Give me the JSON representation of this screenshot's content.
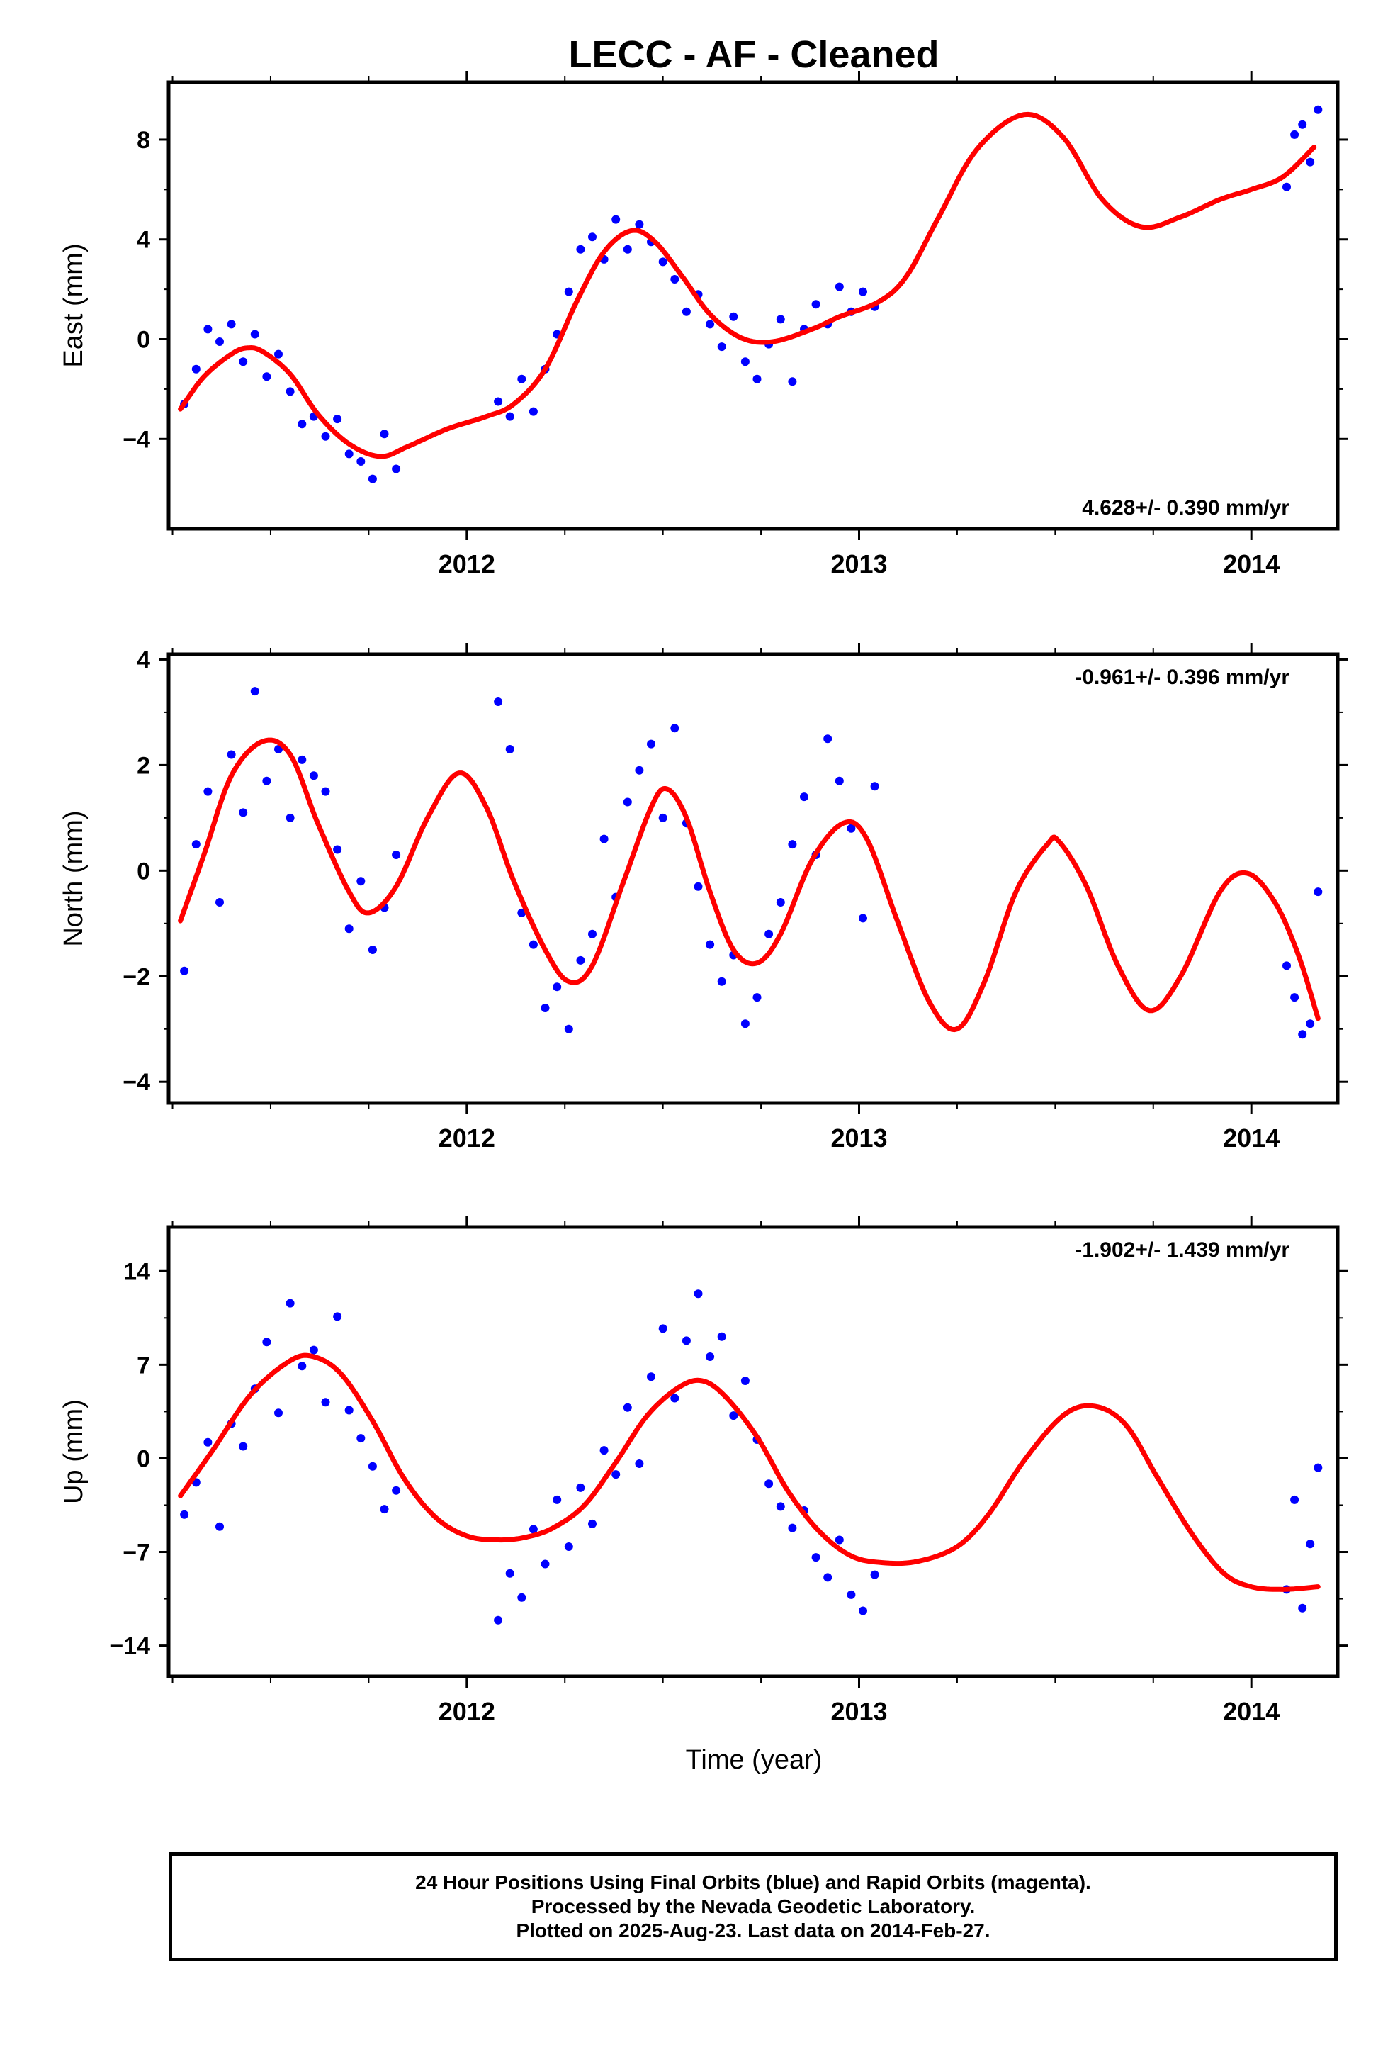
{
  "title": "LECC  - AF - Cleaned",
  "xlabel": "Time (year)",
  "caption": [
    "24 Hour Positions Using Final Orbits (blue) and Rapid Orbits (magenta).",
    "Processed by the Nevada Geodetic Laboratory.",
    "Plotted on 2025-Aug-23. Last data on 2014-Feb-27."
  ],
  "colors": {
    "points": "#0000ff",
    "model": "#ff0000",
    "frame": "#000000"
  },
  "chart_data": [
    {
      "type": "scatter",
      "ylabel": "East (mm)",
      "rate_label": "4.628+/- 0.390 mm/yr",
      "rate_position": "bottom-right",
      "xlim": [
        2011.24,
        2014.22
      ],
      "ylim": [
        -7.6,
        10.3
      ],
      "xticks": [
        2012,
        2013,
        2014
      ],
      "xtick_labels": [
        "2012",
        "2013",
        "2014"
      ],
      "yticks": [
        -4,
        0,
        4,
        8
      ],
      "ytick_labels": [
        "−4",
        "0",
        "4",
        "8"
      ],
      "grid": false,
      "model": {
        "name": "model fit",
        "knots": [
          [
            2011.27,
            -2.8
          ],
          [
            2011.33,
            -1.5
          ],
          [
            2011.4,
            -0.6
          ],
          [
            2011.44,
            -0.35
          ],
          [
            2011.48,
            -0.5
          ],
          [
            2011.55,
            -1.4
          ],
          [
            2011.62,
            -3.0
          ],
          [
            2011.7,
            -4.2
          ],
          [
            2011.78,
            -4.7
          ],
          [
            2011.85,
            -4.3
          ],
          [
            2011.95,
            -3.6
          ],
          [
            2012.05,
            -3.1
          ],
          [
            2012.12,
            -2.6
          ],
          [
            2012.2,
            -1.2
          ],
          [
            2012.28,
            1.5
          ],
          [
            2012.35,
            3.5
          ],
          [
            2012.42,
            4.35
          ],
          [
            2012.48,
            3.9
          ],
          [
            2012.55,
            2.5
          ],
          [
            2012.62,
            1.0
          ],
          [
            2012.7,
            0.05
          ],
          [
            2012.78,
            -0.1
          ],
          [
            2012.88,
            0.4
          ],
          [
            2012.95,
            0.9
          ],
          [
            2013.05,
            1.5
          ],
          [
            2013.12,
            2.5
          ],
          [
            2013.2,
            4.8
          ],
          [
            2013.3,
            7.6
          ],
          [
            2013.42,
            9.0
          ],
          [
            2013.52,
            8.1
          ],
          [
            2013.62,
            5.6
          ],
          [
            2013.72,
            4.5
          ],
          [
            2013.82,
            4.9
          ],
          [
            2013.92,
            5.6
          ],
          [
            2014.0,
            6.0
          ],
          [
            2014.08,
            6.5
          ],
          [
            2014.16,
            7.7
          ]
        ]
      },
      "points": {
        "name": "24 hour positions",
        "x": [
          2011.28,
          2011.31,
          2011.34,
          2011.37,
          2011.4,
          2011.43,
          2011.46,
          2011.49,
          2011.52,
          2011.55,
          2011.58,
          2011.61,
          2011.64,
          2011.67,
          2011.7,
          2011.73,
          2011.76,
          2011.79,
          2011.82,
          2012.08,
          2012.11,
          2012.14,
          2012.17,
          2012.2,
          2012.23,
          2012.26,
          2012.29,
          2012.32,
          2012.35,
          2012.38,
          2012.41,
          2012.44,
          2012.47,
          2012.5,
          2012.53,
          2012.56,
          2012.59,
          2012.62,
          2012.65,
          2012.68,
          2012.71,
          2012.74,
          2012.77,
          2012.8,
          2012.83,
          2012.86,
          2012.89,
          2012.92,
          2012.95,
          2012.98,
          2013.01,
          2013.04,
          2014.09,
          2014.11,
          2014.13,
          2014.15,
          2014.17
        ],
        "y": [
          -2.6,
          -1.2,
          0.4,
          -0.1,
          0.6,
          -0.9,
          0.2,
          -1.5,
          -0.6,
          -2.1,
          -3.4,
          -3.1,
          -3.9,
          -3.2,
          -4.6,
          -4.9,
          -5.6,
          -3.8,
          -5.2,
          -2.5,
          -3.1,
          -1.6,
          -2.9,
          -1.2,
          0.2,
          1.9,
          3.6,
          4.1,
          3.2,
          4.8,
          3.6,
          4.6,
          3.9,
          3.1,
          2.4,
          1.1,
          1.8,
          0.6,
          -0.3,
          0.9,
          -0.9,
          -1.6,
          -0.2,
          0.8,
          -1.7,
          0.4,
          1.4,
          0.6,
          2.1,
          1.1,
          1.9,
          1.3,
          6.1,
          8.2,
          8.6,
          7.1,
          9.2
        ]
      }
    },
    {
      "type": "scatter",
      "ylabel": "North (mm)",
      "rate_label": "-0.961+/- 0.396 mm/yr",
      "rate_position": "top-right",
      "xlim": [
        2011.24,
        2014.22
      ],
      "ylim": [
        -4.4,
        4.1
      ],
      "xticks": [
        2012,
        2013,
        2014
      ],
      "xtick_labels": [
        "2012",
        "2013",
        "2014"
      ],
      "yticks": [
        -4,
        -2,
        0,
        2,
        4
      ],
      "ytick_labels": [
        "−4",
        "−2",
        "0",
        "2",
        "4"
      ],
      "grid": false,
      "model": {
        "name": "model fit",
        "knots": [
          [
            2011.27,
            -0.95
          ],
          [
            2011.33,
            0.3
          ],
          [
            2011.4,
            1.8
          ],
          [
            2011.48,
            2.45
          ],
          [
            2011.55,
            2.2
          ],
          [
            2011.62,
            0.9
          ],
          [
            2011.7,
            -0.4
          ],
          [
            2011.75,
            -0.8
          ],
          [
            2011.82,
            -0.3
          ],
          [
            2011.9,
            1.0
          ],
          [
            2011.98,
            1.85
          ],
          [
            2012.05,
            1.2
          ],
          [
            2012.12,
            -0.2
          ],
          [
            2012.2,
            -1.5
          ],
          [
            2012.26,
            -2.1
          ],
          [
            2012.32,
            -1.8
          ],
          [
            2012.4,
            -0.2
          ],
          [
            2012.47,
            1.2
          ],
          [
            2012.51,
            1.55
          ],
          [
            2012.56,
            1.0
          ],
          [
            2012.62,
            -0.4
          ],
          [
            2012.68,
            -1.5
          ],
          [
            2012.74,
            -1.75
          ],
          [
            2012.8,
            -1.2
          ],
          [
            2012.88,
            0.2
          ],
          [
            2012.96,
            0.9
          ],
          [
            2013.02,
            0.6
          ],
          [
            2013.1,
            -1.0
          ],
          [
            2013.18,
            -2.5
          ],
          [
            2013.25,
            -3.0
          ],
          [
            2013.32,
            -2.1
          ],
          [
            2013.4,
            -0.4
          ],
          [
            2013.48,
            0.5
          ],
          [
            2013.51,
            0.55
          ],
          [
            2013.58,
            -0.3
          ],
          [
            2013.66,
            -1.8
          ],
          [
            2013.74,
            -2.65
          ],
          [
            2013.82,
            -2.0
          ],
          [
            2013.92,
            -0.4
          ],
          [
            2013.99,
            -0.05
          ],
          [
            2014.06,
            -0.6
          ],
          [
            2014.12,
            -1.6
          ],
          [
            2014.17,
            -2.8
          ]
        ]
      },
      "points": {
        "name": "24 hour positions",
        "x": [
          2011.28,
          2011.31,
          2011.34,
          2011.37,
          2011.4,
          2011.43,
          2011.46,
          2011.49,
          2011.52,
          2011.55,
          2011.58,
          2011.61,
          2011.64,
          2011.67,
          2011.7,
          2011.73,
          2011.76,
          2011.79,
          2011.82,
          2012.08,
          2012.11,
          2012.14,
          2012.17,
          2012.2,
          2012.23,
          2012.26,
          2012.29,
          2012.32,
          2012.35,
          2012.38,
          2012.41,
          2012.44,
          2012.47,
          2012.5,
          2012.53,
          2012.56,
          2012.59,
          2012.62,
          2012.65,
          2012.68,
          2012.71,
          2012.74,
          2012.77,
          2012.8,
          2012.83,
          2012.86,
          2012.89,
          2012.92,
          2012.95,
          2012.98,
          2013.01,
          2013.04,
          2014.09,
          2014.11,
          2014.13,
          2014.15,
          2014.17
        ],
        "y": [
          -1.9,
          0.5,
          1.5,
          -0.6,
          2.2,
          1.1,
          3.4,
          1.7,
          2.3,
          1.0,
          2.1,
          1.8,
          1.5,
          0.4,
          -1.1,
          -0.2,
          -1.5,
          -0.7,
          0.3,
          3.2,
          2.3,
          -0.8,
          -1.4,
          -2.6,
          -2.2,
          -3.0,
          -1.7,
          -1.2,
          0.6,
          -0.5,
          1.3,
          1.9,
          2.4,
          1.0,
          2.7,
          0.9,
          -0.3,
          -1.4,
          -2.1,
          -1.6,
          -2.9,
          -2.4,
          -1.2,
          -0.6,
          0.5,
          1.4,
          0.3,
          2.5,
          1.7,
          0.8,
          -0.9,
          1.6,
          -1.8,
          -2.4,
          -3.1,
          -2.9,
          -0.4
        ]
      }
    },
    {
      "type": "scatter",
      "ylabel": "Up (mm)",
      "rate_label": "-1.902+/- 1.439 mm/yr",
      "rate_position": "top-right",
      "xlim": [
        2011.24,
        2014.22
      ],
      "ylim": [
        -16.3,
        17.3
      ],
      "xticks": [
        2012,
        2013,
        2014
      ],
      "xtick_labels": [
        "2012",
        "2013",
        "2014"
      ],
      "yticks": [
        -14,
        -7,
        0,
        7,
        14
      ],
      "ytick_labels": [
        "−14",
        "−7",
        "0",
        "7",
        "14"
      ],
      "grid": false,
      "model": {
        "name": "model fit",
        "knots": [
          [
            2011.27,
            -2.8
          ],
          [
            2011.35,
            0.5
          ],
          [
            2011.45,
            4.8
          ],
          [
            2011.55,
            7.3
          ],
          [
            2011.61,
            7.6
          ],
          [
            2011.68,
            6.3
          ],
          [
            2011.76,
            2.8
          ],
          [
            2011.84,
            -1.5
          ],
          [
            2011.92,
            -4.4
          ],
          [
            2012.0,
            -5.8
          ],
          [
            2012.08,
            -6.1
          ],
          [
            2012.15,
            -5.9
          ],
          [
            2012.22,
            -5.2
          ],
          [
            2012.3,
            -3.5
          ],
          [
            2012.38,
            -0.3
          ],
          [
            2012.46,
            3.2
          ],
          [
            2012.54,
            5.3
          ],
          [
            2012.6,
            5.8
          ],
          [
            2012.66,
            4.6
          ],
          [
            2012.74,
            1.6
          ],
          [
            2012.82,
            -2.5
          ],
          [
            2012.9,
            -5.5
          ],
          [
            2012.98,
            -7.3
          ],
          [
            2013.06,
            -7.8
          ],
          [
            2013.15,
            -7.7
          ],
          [
            2013.25,
            -6.6
          ],
          [
            2013.33,
            -4.2
          ],
          [
            2013.42,
            -0.2
          ],
          [
            2013.52,
            3.2
          ],
          [
            2013.6,
            3.9
          ],
          [
            2013.68,
            2.5
          ],
          [
            2013.76,
            -1.4
          ],
          [
            2013.85,
            -5.7
          ],
          [
            2013.93,
            -8.6
          ],
          [
            2014.0,
            -9.6
          ],
          [
            2014.08,
            -9.8
          ],
          [
            2014.17,
            -9.6
          ]
        ]
      },
      "points": {
        "name": "24 hour positions",
        "x": [
          2011.28,
          2011.31,
          2011.34,
          2011.37,
          2011.4,
          2011.43,
          2011.46,
          2011.49,
          2011.52,
          2011.55,
          2011.58,
          2011.61,
          2011.64,
          2011.67,
          2011.7,
          2011.73,
          2011.76,
          2011.79,
          2011.82,
          2012.08,
          2012.11,
          2012.14,
          2012.17,
          2012.2,
          2012.23,
          2012.26,
          2012.29,
          2012.32,
          2012.35,
          2012.38,
          2012.41,
          2012.44,
          2012.47,
          2012.5,
          2012.53,
          2012.56,
          2012.59,
          2012.62,
          2012.65,
          2012.68,
          2012.71,
          2012.74,
          2012.77,
          2012.8,
          2012.83,
          2012.86,
          2012.89,
          2012.92,
          2012.95,
          2012.98,
          2013.01,
          2013.04,
          2014.09,
          2014.11,
          2014.13,
          2014.15,
          2014.17
        ],
        "y": [
          -4.2,
          -1.8,
          1.2,
          -5.1,
          2.6,
          0.9,
          5.2,
          8.7,
          3.4,
          11.6,
          6.9,
          8.1,
          4.2,
          10.6,
          3.6,
          1.5,
          -0.6,
          -3.8,
          -2.4,
          -12.1,
          -8.6,
          -10.4,
          -5.3,
          -7.9,
          -3.1,
          -6.6,
          -2.2,
          -4.9,
          0.6,
          -1.2,
          3.8,
          -0.4,
          6.1,
          9.7,
          4.5,
          8.8,
          12.3,
          7.6,
          9.1,
          3.2,
          5.8,
          1.4,
          -1.9,
          -3.6,
          -5.2,
          -3.9,
          -7.4,
          -8.9,
          -6.1,
          -10.2,
          -11.4,
          -8.7,
          -9.8,
          -3.1,
          -11.2,
          -6.4,
          -0.7
        ]
      }
    }
  ]
}
